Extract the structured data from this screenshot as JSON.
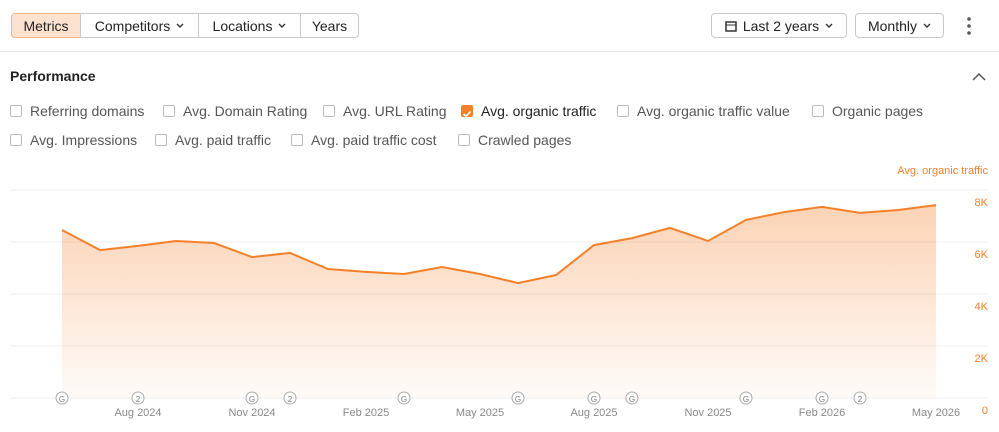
{
  "toolbar": {
    "tabs": [
      {
        "label": "Metrics",
        "active": true
      },
      {
        "label": "Competitors",
        "dropdown": true
      },
      {
        "label": "Locations",
        "dropdown": true
      },
      {
        "label": "Years"
      }
    ],
    "period": "Last 2 years",
    "interval": "Monthly"
  },
  "section": {
    "title": "Performance",
    "metrics": [
      {
        "label": "Referring domains",
        "checked": false
      },
      {
        "label": "Avg. Domain Rating",
        "checked": false
      },
      {
        "label": "Avg. URL Rating",
        "checked": false
      },
      {
        "label": "Avg. organic traffic",
        "checked": true
      },
      {
        "label": "Avg. organic traffic value",
        "checked": false
      },
      {
        "label": "Organic pages",
        "checked": false
      },
      {
        "label": "Avg. Impressions",
        "checked": false
      },
      {
        "label": "Avg. paid traffic",
        "checked": false
      },
      {
        "label": "Avg. paid traffic cost",
        "checked": false
      },
      {
        "label": "Crawled pages",
        "checked": false
      }
    ]
  },
  "chart_data": {
    "type": "area",
    "y_axis_label": "Avg. organic traffic",
    "categories": [
      null,
      null,
      "Aug 2024",
      null,
      null,
      "Nov 2024",
      null,
      null,
      "Feb 2025",
      null,
      null,
      "May 2025",
      null,
      null,
      "Aug 2025",
      null,
      null,
      "Nov 2025",
      null,
      null,
      "Feb 2026",
      null,
      null,
      "May 2026"
    ],
    "series": [
      {
        "name": "Avg. organic traffic",
        "color": "#f5802a",
        "values": [
          6460,
          5690,
          5850,
          6040,
          5960,
          5420,
          5580,
          4960,
          4850,
          4770,
          5040,
          4770,
          4420,
          4730,
          5880,
          6150,
          6540,
          6040,
          6850,
          7150,
          7350,
          7120,
          7230,
          7420
        ]
      }
    ],
    "ylim": [
      0,
      8000
    ],
    "yticks": [
      {
        "value": 0,
        "label": "0"
      },
      {
        "value": 2000,
        "label": "2K"
      },
      {
        "value": 4000,
        "label": "4K"
      },
      {
        "value": 6000,
        "label": "6K"
      },
      {
        "value": 8000,
        "label": "8K"
      }
    ],
    "grid": true,
    "annotations": [
      {
        "label": "G",
        "index": 0
      },
      {
        "label": "2",
        "index": 2
      },
      {
        "label": "G",
        "index": 5
      },
      {
        "label": "2",
        "index": 6
      },
      {
        "label": "G",
        "index": 9
      },
      {
        "label": "G",
        "index": 12
      },
      {
        "label": "G",
        "index": 14
      },
      {
        "label": "G",
        "index": 15
      },
      {
        "label": "G",
        "index": 18
      },
      {
        "label": "G",
        "index": 20
      },
      {
        "label": "2",
        "index": 21
      }
    ]
  }
}
